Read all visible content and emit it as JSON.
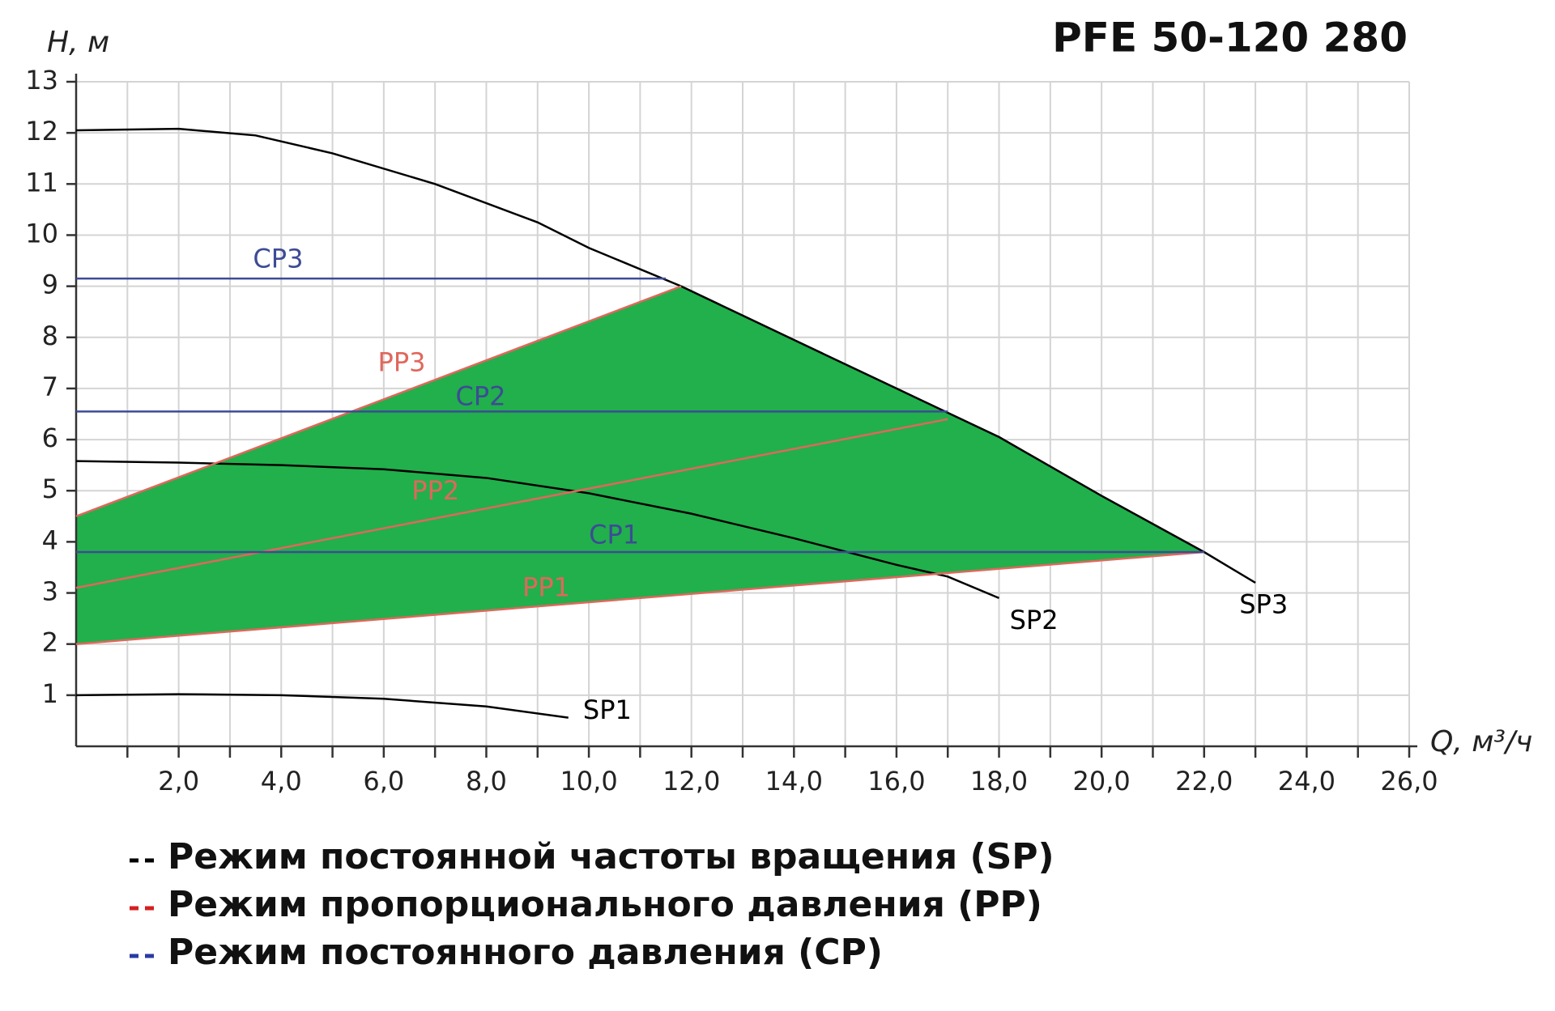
{
  "chart_data": {
    "type": "line",
    "title": "PFE 50-120 280",
    "y_label": "H, м",
    "x_label": "Q, м³/ч",
    "xlim": [
      0,
      26
    ],
    "ylim": [
      0,
      13
    ],
    "xticks": [
      {
        "value": 2,
        "label": "2,0"
      },
      {
        "value": 4,
        "label": "4,0"
      },
      {
        "value": 6,
        "label": "6,0"
      },
      {
        "value": 8,
        "label": "8,0"
      },
      {
        "value": 10,
        "label": "10,0"
      },
      {
        "value": 12,
        "label": "12,0"
      },
      {
        "value": 14,
        "label": "14,0"
      },
      {
        "value": 16,
        "label": "16,0"
      },
      {
        "value": 18,
        "label": "18,0"
      },
      {
        "value": 20,
        "label": "20,0"
      },
      {
        "value": 22,
        "label": "22,0"
      },
      {
        "value": 24,
        "label": "24,0"
      },
      {
        "value": 26,
        "label": "26,0"
      }
    ],
    "xminorticks": [
      1,
      3,
      5,
      7,
      9,
      11,
      13,
      15,
      17,
      19,
      21,
      23,
      25
    ],
    "yticks": [
      1,
      2,
      3,
      4,
      5,
      6,
      7,
      8,
      9,
      10,
      11,
      12,
      13
    ],
    "grid": true,
    "area_color": "#21b04b",
    "series": [
      {
        "name": "SP1",
        "color": "#000000",
        "x": [
          0,
          2,
          4,
          6,
          8,
          9.6
        ],
        "values": [
          1.0,
          1.02,
          1.0,
          0.93,
          0.78,
          0.56
        ]
      },
      {
        "name": "SP2",
        "color": "#000000",
        "x": [
          0,
          2,
          4,
          6,
          8,
          10,
          12,
          14,
          16,
          17,
          18
        ],
        "values": [
          5.58,
          5.55,
          5.5,
          5.42,
          5.25,
          4.95,
          4.55,
          4.07,
          3.55,
          3.32,
          2.9
        ]
      },
      {
        "name": "SP3",
        "color": "#000000",
        "x": [
          0,
          2,
          3.5,
          5,
          7,
          9,
          10,
          11.8,
          14,
          16,
          18,
          20,
          22,
          23
        ],
        "values": [
          12.05,
          12.08,
          11.95,
          11.6,
          11.0,
          10.25,
          9.75,
          9.0,
          7.95,
          7.0,
          6.05,
          4.9,
          3.8,
          3.2
        ]
      },
      {
        "name": "PP1",
        "color": "#e0675c",
        "x": [
          0,
          22
        ],
        "values": [
          2,
          3.8
        ]
      },
      {
        "name": "PP2",
        "color": "#e0675c",
        "x": [
          0,
          17
        ],
        "values": [
          3.1,
          6.4
        ]
      },
      {
        "name": "PP3",
        "color": "#e0675c",
        "x": [
          0,
          11.8
        ],
        "values": [
          4.5,
          9
        ]
      },
      {
        "name": "CP1",
        "color": "#3d4b96",
        "x": [
          0,
          22
        ],
        "values": [
          3.8,
          3.8
        ]
      },
      {
        "name": "CP2",
        "color": "#3d4b96",
        "x": [
          0,
          17
        ],
        "values": [
          6.55,
          6.55
        ]
      },
      {
        "name": "CP3",
        "color": "#3d4b96",
        "x": [
          0,
          11.5
        ],
        "values": [
          9.15,
          9.15
        ]
      }
    ],
    "legend": [
      {
        "text": "Режим постоянной частоты вращения (SP)",
        "color": "#000000"
      },
      {
        "text": "Режим пропорционального давления (PP)",
        "color": "#d42020"
      },
      {
        "text": "Режим постоянного давления (CP)",
        "color": "#2a3ba0"
      }
    ]
  }
}
